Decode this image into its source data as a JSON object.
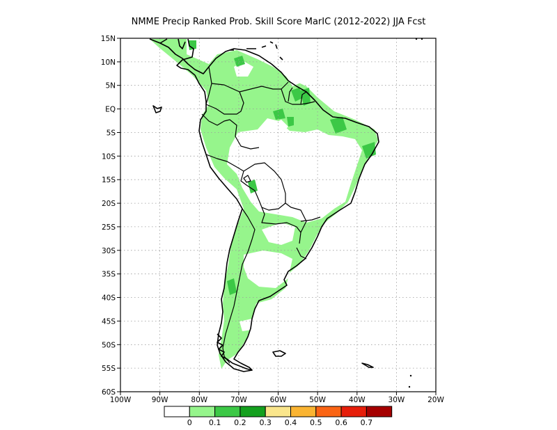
{
  "title": "NMME Precip Ranked Prob. Skill Score MarIC (2012-2022) JJA Fcst",
  "axes": {
    "lat_labels": [
      "15N",
      "10N",
      "5N",
      "EQ",
      "5S",
      "10S",
      "15S",
      "20S",
      "25S",
      "30S",
      "35S",
      "40S",
      "45S",
      "50S",
      "55S",
      "60S"
    ],
    "lon_labels": [
      "100W",
      "90W",
      "80W",
      "70W",
      "60W",
      "50W",
      "40W",
      "30W",
      "20W"
    ]
  },
  "map": {
    "lat_range": [
      -60,
      15
    ],
    "lon_range": [
      -100,
      -20
    ],
    "grid": "dotted"
  },
  "colorbar": {
    "labels": [
      "0",
      "0.1",
      "0.2",
      "0.3",
      "0.4",
      "0.5",
      "0.6",
      "0.7"
    ],
    "colors": [
      "#ffffff",
      "#96f58c",
      "#3cc846",
      "#14a01e",
      "#fae68c",
      "#fab432",
      "#fa6414",
      "#e61e0a",
      "#a50000"
    ]
  },
  "colors": {
    "skill_light": "#96f58c",
    "skill_medium": "#3cc846",
    "skill_dark": "#14a01e"
  }
}
